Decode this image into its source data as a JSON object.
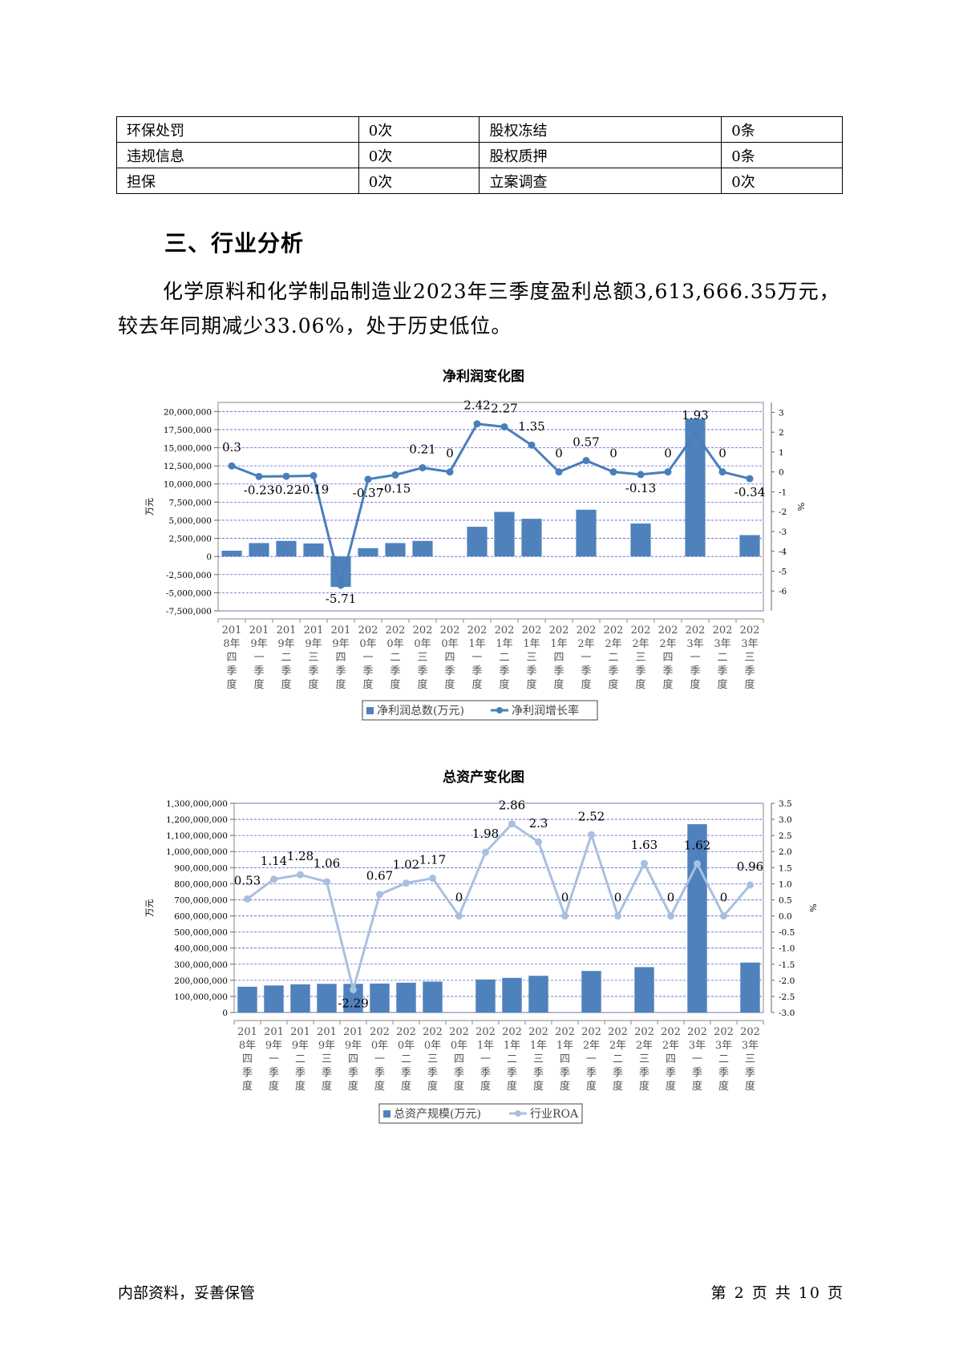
{
  "info_table": [
    [
      "环保处罚",
      "0次",
      "股权冻结",
      "0条"
    ],
    [
      "违规信息",
      "0次",
      "股权质押",
      "0条"
    ],
    [
      "担保",
      "0次",
      "立案调查",
      "0次"
    ]
  ],
  "section_heading": "三、行业分析",
  "paragraph": "化学原料和化学制品制造业2023年三季度盈利总额3,613,666.35万元，较去年同期减少33.06%，处于历史低位。",
  "footer": {
    "left": "内部资料，妥善保管",
    "right": "第 2 页   共 10 页"
  },
  "colors": {
    "bar": "#4f81bd",
    "line1": "#4a7ebb",
    "line2": "#a8c0e0",
    "grid": "#5a5ad8"
  },
  "charts": [
    {
      "title": "净利润变化图",
      "ylabel_left": "万元",
      "ylabel_right": "%",
      "legend": [
        "净利润总数(万元)",
        "净利润增长率"
      ],
      "categories": [
        [
          "201",
          "8年",
          "四",
          "季",
          "度"
        ],
        [
          "201",
          "9年",
          "一",
          "季",
          "度"
        ],
        [
          "201",
          "9年",
          "二",
          "季",
          "度"
        ],
        [
          "201",
          "9年",
          "三",
          "季",
          "度"
        ],
        [
          "201",
          "9年",
          "四",
          "季",
          "度"
        ],
        [
          "202",
          "0年",
          "一",
          "季",
          "度"
        ],
        [
          "202",
          "0年",
          "二",
          "季",
          "度"
        ],
        [
          "202",
          "0年",
          "三",
          "季",
          "度"
        ],
        [
          "202",
          "0年",
          "四",
          "季",
          "度"
        ],
        [
          "202",
          "1年",
          "一",
          "季",
          "度"
        ],
        [
          "202",
          "1年",
          "二",
          "季",
          "度"
        ],
        [
          "202",
          "1年",
          "三",
          "季",
          "度"
        ],
        [
          "202",
          "1年",
          "四",
          "季",
          "度"
        ],
        [
          "202",
          "2年",
          "一",
          "季",
          "度"
        ],
        [
          "202",
          "2年",
          "二",
          "季",
          "度"
        ],
        [
          "202",
          "2年",
          "三",
          "季",
          "度"
        ],
        [
          "202",
          "2年",
          "四",
          "季",
          "度"
        ],
        [
          "202",
          "3年",
          "一",
          "季",
          "度"
        ],
        [
          "202",
          "3年",
          "二",
          "季",
          "度"
        ],
        [
          "202",
          "3年",
          "三",
          "季",
          "度"
        ]
      ],
      "left_ticks": [
        "20,000,000",
        "17,500,000",
        "15,000,000",
        "12,500,000",
        "10,000,000",
        "7,500,000",
        "5,000,000",
        "2,500,000",
        "0",
        "-2,500,000",
        "-5,000,000",
        "-7,500,000"
      ],
      "right_ticks": [
        "3",
        "2",
        "1",
        "0",
        "-1",
        "-2",
        "-3",
        "-4",
        "-5",
        "-6"
      ]
    },
    {
      "title": "总资产变化图",
      "ylabel_left": "万元",
      "ylabel_right": "%",
      "legend": [
        "总资产规模(万元)",
        "行业ROA"
      ],
      "categories": [
        [
          "201",
          "8年",
          "四",
          "季",
          "度"
        ],
        [
          "201",
          "9年",
          "一",
          "季",
          "度"
        ],
        [
          "201",
          "9年",
          "二",
          "季",
          "度"
        ],
        [
          "201",
          "9年",
          "三",
          "季",
          "度"
        ],
        [
          "201",
          "9年",
          "四",
          "季",
          "度"
        ],
        [
          "202",
          "0年",
          "一",
          "季",
          "度"
        ],
        [
          "202",
          "0年",
          "二",
          "季",
          "度"
        ],
        [
          "202",
          "0年",
          "三",
          "季",
          "度"
        ],
        [
          "202",
          "0年",
          "四",
          "季",
          "度"
        ],
        [
          "202",
          "1年",
          "一",
          "季",
          "度"
        ],
        [
          "202",
          "1年",
          "二",
          "季",
          "度"
        ],
        [
          "202",
          "1年",
          "三",
          "季",
          "度"
        ],
        [
          "202",
          "1年",
          "四",
          "季",
          "度"
        ],
        [
          "202",
          "2年",
          "一",
          "季",
          "度"
        ],
        [
          "202",
          "2年",
          "二",
          "季",
          "度"
        ],
        [
          "202",
          "2年",
          "三",
          "季",
          "度"
        ],
        [
          "202",
          "2年",
          "四",
          "季",
          "度"
        ],
        [
          "202",
          "3年",
          "一",
          "季",
          "度"
        ],
        [
          "202",
          "3年",
          "二",
          "季",
          "度"
        ],
        [
          "202",
          "3年",
          "三",
          "季",
          "度"
        ]
      ],
      "left_ticks": [
        "1,300,000,000",
        "1,200,000,000",
        "1,100,000,000",
        "1,000,000,000",
        "900,000,000",
        "800,000,000",
        "700,000,000",
        "600,000,000",
        "500,000,000",
        "400,000,000",
        "300,000,000",
        "200,000,000",
        "100,000,000",
        "0"
      ],
      "right_ticks": [
        "3.5",
        "3.0",
        "2.5",
        "2.0",
        "1.5",
        "1.0",
        "0.5",
        "0.0",
        "-0.5",
        "-1.0",
        "-1.5",
        "-2.0",
        "-2.5",
        "-3.0"
      ]
    }
  ],
  "chart_data": [
    {
      "type": "bar",
      "title": "净利润变化图",
      "ylabel": "万元",
      "y2label": "%",
      "ylim": [
        -7500000,
        21250000
      ],
      "y2lim": [
        -7,
        3.5
      ],
      "series": [
        {
          "name": "净利润总数(万元)",
          "type": "bar",
          "axis": "left",
          "values": [
            800000,
            1850000,
            2150000,
            1800000,
            -4200000,
            1150000,
            1850000,
            2150000,
            null,
            4100000,
            6150000,
            5200000,
            null,
            6450000,
            null,
            4550000,
            null,
            19000000,
            null,
            2950000
          ]
        },
        {
          "name": "净利润增长率",
          "type": "line",
          "axis": "right",
          "values": [
            0.3,
            -0.23,
            -0.22,
            -0.19,
            -5.71,
            -0.37,
            -0.15,
            0.21,
            0,
            2.42,
            2.27,
            1.35,
            0,
            0.57,
            0,
            -0.13,
            0,
            1.93,
            0,
            -0.34
          ],
          "labels": [
            "0.3",
            "-0.23",
            "-0.22",
            "-0.19",
            "-5.71",
            "-0.37",
            "-0.15",
            "0.21",
            "0",
            "2.42",
            "2.27",
            "1.35",
            "0",
            "0.57",
            "0",
            "-0.13",
            "0",
            "1.93",
            "0",
            "-0.34"
          ]
        }
      ]
    },
    {
      "type": "bar",
      "title": "总资产变化图",
      "ylabel": "万元",
      "y2label": "%",
      "ylim": [
        0,
        1300000000
      ],
      "y2lim": [
        -3.0,
        3.5
      ],
      "series": [
        {
          "name": "总资产规模(万元)",
          "type": "bar",
          "axis": "left",
          "values": [
            160000000,
            168000000,
            175000000,
            178000000,
            178000000,
            180000000,
            185000000,
            192000000,
            null,
            205000000,
            215000000,
            228000000,
            null,
            258000000,
            null,
            282000000,
            null,
            1170000000,
            null,
            310000000
          ]
        },
        {
          "name": "行业ROA",
          "type": "line",
          "axis": "right",
          "values": [
            0.53,
            1.14,
            1.28,
            1.06,
            -2.29,
            0.67,
            1.02,
            1.17,
            0,
            1.98,
            2.86,
            2.3,
            0,
            2.52,
            0,
            1.63,
            0,
            1.62,
            0,
            0.96
          ],
          "labels": [
            "0.53",
            "1.14",
            "1.28",
            "1.06",
            "-2.29",
            "0.67",
            "1.02",
            "1.17",
            "0",
            "1.98",
            "2.86",
            "2.3",
            "0",
            "2.52",
            "0",
            "1.63",
            "0",
            "1.62",
            "0",
            "0.96"
          ]
        }
      ]
    }
  ]
}
